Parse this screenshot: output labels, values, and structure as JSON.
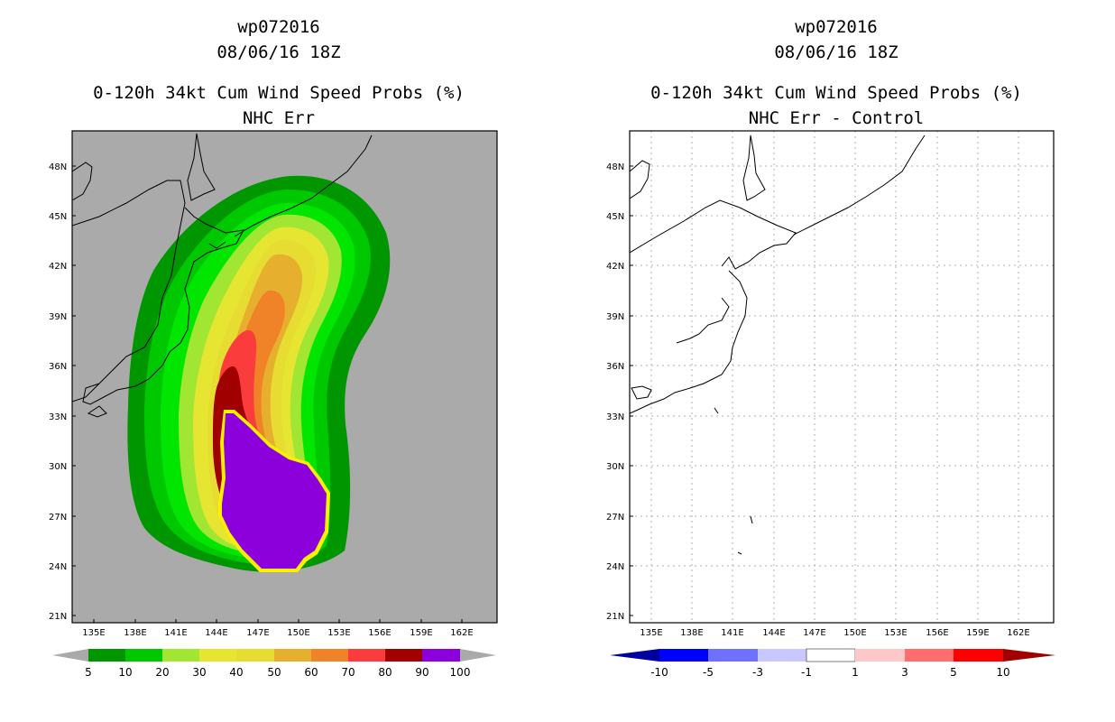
{
  "left_panel": {
    "storm_id": "wp072016",
    "datetime": "08/06/16 18Z",
    "product": "0-120h 34kt Cum Wind Speed Probs (%)",
    "subtitle": "NHC Err",
    "background_color": "#aaaaaa",
    "lat_labels": [
      "48N",
      "45N",
      "42N",
      "39N",
      "36N",
      "33N",
      "30N",
      "27N",
      "24N",
      "21N"
    ],
    "lon_labels": [
      "135E",
      "138E",
      "141E",
      "144E",
      "147E",
      "150E",
      "153E",
      "156E",
      "159E",
      "162E"
    ],
    "colorbar": {
      "labels": [
        "5",
        "10",
        "20",
        "30",
        "40",
        "50",
        "60",
        "70",
        "80",
        "90",
        "100"
      ],
      "colors": [
        "#009600",
        "#00c800",
        "#00e600",
        "#a0e632",
        "#e6e632",
        "#e6dc32",
        "#e6af2d",
        "#f08228",
        "#fa3c3c",
        "#a00000",
        "#8c00dc"
      ]
    }
  },
  "right_panel": {
    "storm_id": "wp072016",
    "datetime": "08/06/16 18Z",
    "product": "0-120h 34kt Cum Wind Speed Probs (%)",
    "subtitle": "NHC Err - Control",
    "background_color": "#ffffff",
    "lat_labels": [
      "48N",
      "45N",
      "42N",
      "39N",
      "36N",
      "33N",
      "30N",
      "27N",
      "24N",
      "21N"
    ],
    "lon_labels": [
      "135E",
      "138E",
      "141E",
      "144E",
      "147E",
      "150E",
      "153E",
      "156E",
      "159E",
      "162E"
    ],
    "colorbar": {
      "labels": [
        "-10",
        "-5",
        "-3",
        "-1",
        "1",
        "3",
        "5",
        "10"
      ],
      "colors": [
        "#0000a0",
        "#0000ff",
        "#7070ff",
        "#c8c8ff",
        "#ffffff",
        "#ffc8c8",
        "#ff6e6e",
        "#ff0000",
        "#a00000"
      ]
    }
  }
}
